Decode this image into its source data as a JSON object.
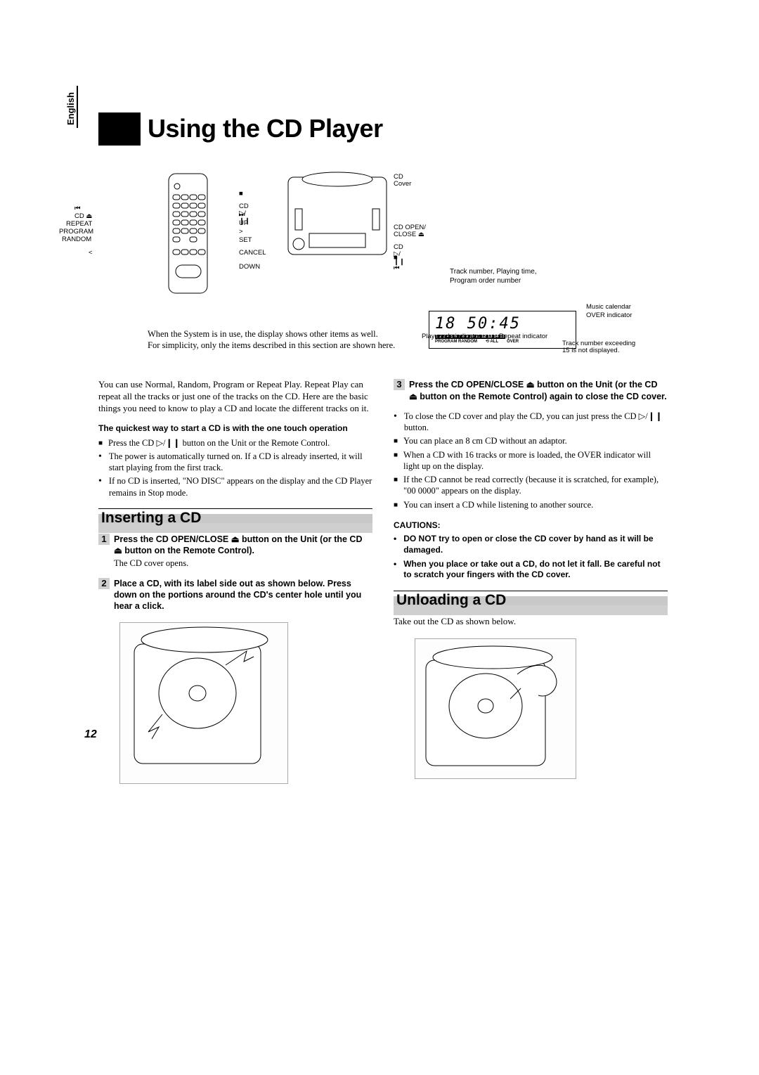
{
  "language_tab": "English",
  "title": "Using the CD Player",
  "remote_labels_left": [
    "⏮",
    "CD ⏏",
    "REPEAT",
    "PROGRAM",
    "RANDOM",
    "<"
  ],
  "remote_labels_right": [
    "■",
    "CD ▷/❙❙",
    "⏭",
    "UP",
    ">",
    "SET",
    "CANCEL",
    "DOWN"
  ],
  "unit_labels": [
    "CD Cover",
    "CD OPEN/\nCLOSE ⏏",
    "CD ▷/❙❙",
    "■",
    "⏮"
  ],
  "diagram_caption_1": "When the System is in use, the display shows other items as well.",
  "diagram_caption_2": "For simplicity, only the items described in this section are shown here.",
  "display": {
    "top_label": "Track number, Playing time,\nProgram order number",
    "digits": "18  50:45",
    "calendar": [
      "1",
      "2",
      "3",
      "4",
      "5",
      "6",
      "7",
      "8",
      "9",
      "10",
      "11",
      "12",
      "13",
      "14",
      "15"
    ],
    "row2_labels": [
      "PROGRAM RANDOM",
      "⟲ ALL",
      "OVER"
    ],
    "right_labels": [
      "Music calendar",
      "OVER indicator"
    ],
    "bottom_left": "Play mode indicator",
    "bottom_mid": "Repeat indicator",
    "bottom_right": "Track number exceeding\n15 is not displayed."
  },
  "intro_para": "You can use Normal, Random, Program or Repeat Play. Repeat Play can repeat all the tracks or just one of the tracks on the CD. Here are the basic things you need to know to play a CD and locate the different tracks on it.",
  "quick_heading": "The quickest way to start a CD is with the one touch operation",
  "quick_bullets": [
    {
      "type": "sq",
      "text": "Press the CD ▷/❙❙ button on the Unit or the Remote Control."
    },
    {
      "type": "dot",
      "text": "The power is automatically turned on. If a CD is already inserted, it will start playing from the first track."
    },
    {
      "type": "dot",
      "text": "If no CD is inserted, \"NO DISC\" appears on the display and the CD Player remains in Stop mode."
    }
  ],
  "section_insert": "Inserting a CD",
  "step1": {
    "num": "1",
    "bold": "Press the CD OPEN/CLOSE ⏏ button on the Unit (or the CD ⏏ button on the Remote Control).",
    "sub": "The CD cover opens."
  },
  "step2": {
    "num": "2",
    "bold": "Place a CD, with its label side out as shown below. Press down on the portions around the CD's center hole until you hear a click."
  },
  "step3": {
    "num": "3",
    "bold": "Press the CD OPEN/CLOSE ⏏ button on the Unit (or the CD ⏏ button on the Remote Control) again to close the CD cover."
  },
  "step3_bullets": [
    {
      "type": "dot",
      "text": "To close the CD cover and play the CD, you can just press the CD ▷/❙❙ button."
    },
    {
      "type": "sq",
      "text": "You can place an 8 cm CD without an adaptor."
    },
    {
      "type": "sq",
      "text": "When a CD with 16 tracks or more is loaded, the OVER indicator will light up on the display."
    },
    {
      "type": "sq",
      "text": "If the CD cannot be read correctly (because it is scratched, for example), \"00 0000\" appears on the display."
    },
    {
      "type": "sq",
      "text": "You can insert a CD while listening to another source."
    }
  ],
  "cautions_label": "CAUTIONS:",
  "cautions": [
    "DO NOT try to open or close the CD cover by hand as it will be damaged.",
    "When you place or take out a CD, do not let it fall. Be careful not to scratch your fingers with the CD cover."
  ],
  "section_unload": "Unloading a CD",
  "unload_text": "Take out the CD as shown below.",
  "page_number": "12"
}
